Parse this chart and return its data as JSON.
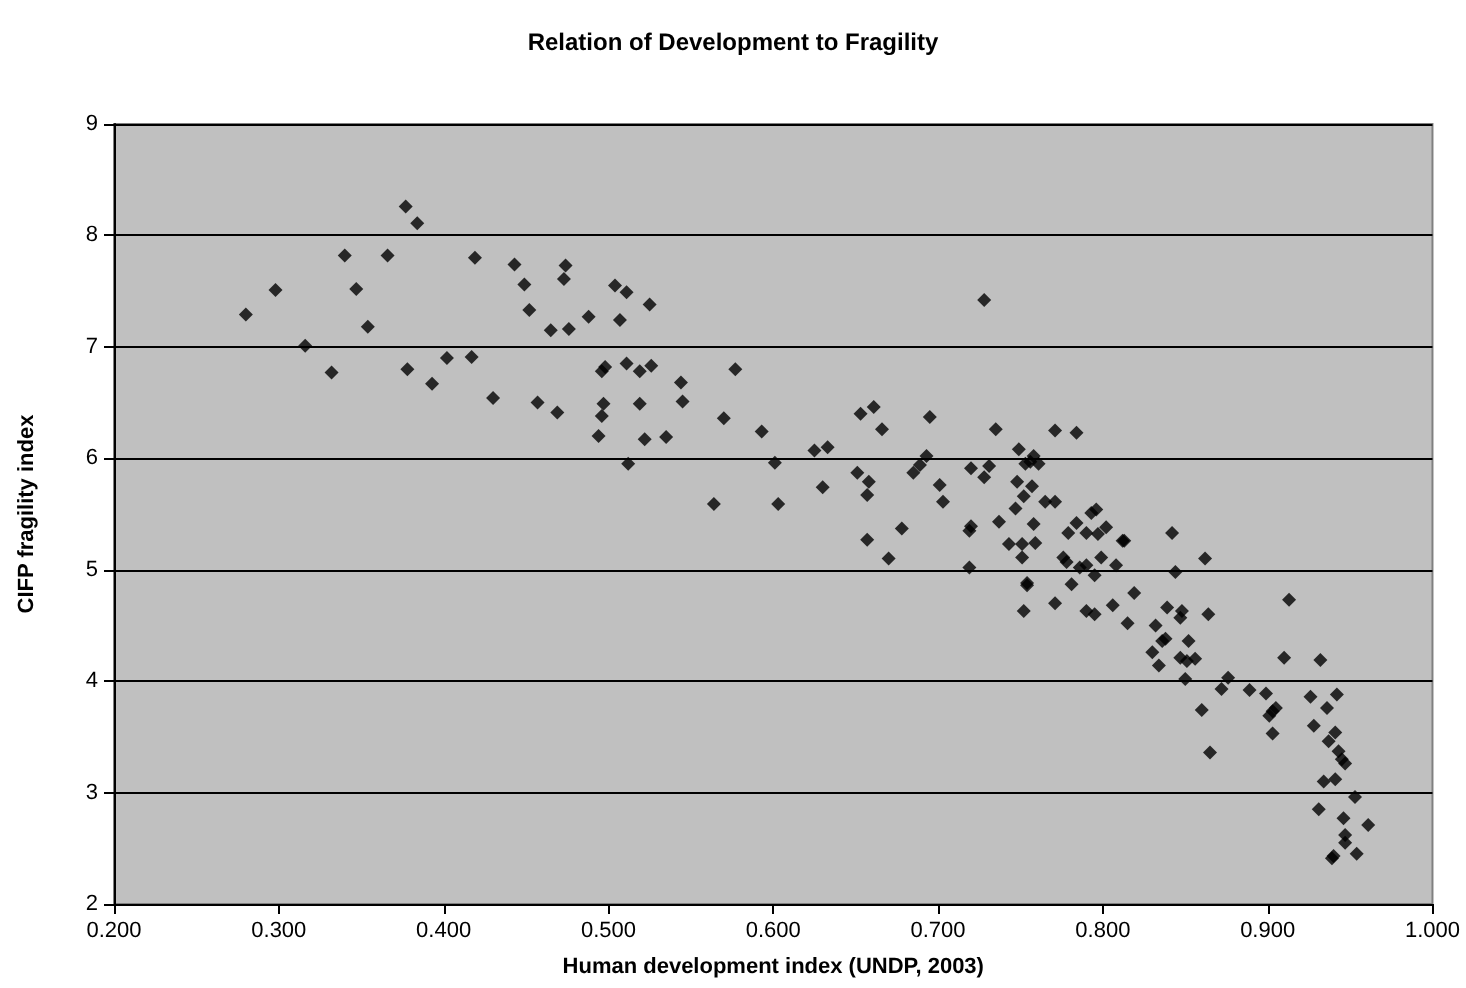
{
  "chart_data": {
    "type": "scatter",
    "title": "Relation of Development to Fragility",
    "xlabel": "Human development index (UNDP, 2003)",
    "ylabel": "CIFP fragility index",
    "xlim": [
      0.2,
      1.0
    ],
    "ylim": [
      2,
      9
    ],
    "xticks": [
      {
        "value": 0.2,
        "label": "0.200"
      },
      {
        "value": 0.3,
        "label": "0.300"
      },
      {
        "value": 0.4,
        "label": "0.400"
      },
      {
        "value": 0.5,
        "label": "0.500"
      },
      {
        "value": 0.6,
        "label": "0.600"
      },
      {
        "value": 0.7,
        "label": "0.700"
      },
      {
        "value": 0.8,
        "label": "0.800"
      },
      {
        "value": 0.9,
        "label": "0.900"
      },
      {
        "value": 1.0,
        "label": "1.000"
      }
    ],
    "yticks": [
      2,
      3,
      4,
      5,
      6,
      7,
      8,
      9
    ],
    "grid": "y",
    "marker": "diamond",
    "series": [
      {
        "color": "#000000",
        "x": [
          0.377,
          0.384,
          0.34,
          0.366,
          0.419,
          0.443,
          0.474,
          0.473,
          0.449,
          0.298,
          0.347,
          0.28,
          0.452,
          0.488,
          0.354,
          0.465,
          0.476,
          0.316,
          0.332,
          0.378,
          0.402,
          0.417,
          0.393,
          0.43,
          0.457,
          0.469,
          0.504,
          0.511,
          0.507,
          0.525,
          0.496,
          0.498,
          0.511,
          0.519,
          0.526,
          0.497,
          0.496,
          0.519,
          0.494,
          0.522,
          0.535,
          0.512,
          0.544,
          0.545,
          0.577,
          0.57,
          0.593,
          0.601,
          0.564,
          0.603,
          0.625,
          0.633,
          0.63,
          0.653,
          0.661,
          0.666,
          0.651,
          0.658,
          0.657,
          0.657,
          0.67,
          0.678,
          0.695,
          0.685,
          0.689,
          0.693,
          0.701,
          0.703,
          0.728,
          0.735,
          0.771,
          0.784,
          0.749,
          0.758,
          0.753,
          0.761,
          0.756,
          0.72,
          0.731,
          0.728,
          0.748,
          0.757,
          0.752,
          0.765,
          0.771,
          0.747,
          0.72,
          0.719,
          0.737,
          0.758,
          0.793,
          0.796,
          0.784,
          0.779,
          0.79,
          0.797,
          0.802,
          0.812,
          0.842,
          0.743,
          0.751,
          0.759,
          0.751,
          0.776,
          0.778,
          0.786,
          0.79,
          0.795,
          0.799,
          0.808,
          0.719,
          0.754,
          0.754,
          0.781,
          0.771,
          0.752,
          0.79,
          0.795,
          0.806,
          0.819,
          0.839,
          0.844,
          0.862,
          0.848,
          0.864,
          0.813,
          0.815,
          0.847,
          0.832,
          0.836,
          0.838,
          0.83,
          0.852,
          0.834,
          0.847,
          0.851,
          0.856,
          0.85,
          0.86,
          0.865,
          0.872,
          0.876,
          0.889,
          0.899,
          0.905,
          0.903,
          0.901,
          0.903,
          0.913,
          0.91,
          0.932,
          0.926,
          0.936,
          0.942,
          0.928,
          0.937,
          0.941,
          0.943,
          0.945,
          0.947,
          0.934,
          0.941,
          0.953,
          0.931,
          0.946,
          0.961,
          0.947,
          0.947,
          0.939,
          0.94,
          0.954
        ],
        "values": [
          8.26,
          8.11,
          7.82,
          7.82,
          7.8,
          7.74,
          7.73,
          7.61,
          7.56,
          7.51,
          7.52,
          7.29,
          7.33,
          7.27,
          7.18,
          7.15,
          7.16,
          7.01,
          6.77,
          6.8,
          6.9,
          6.91,
          6.67,
          6.54,
          6.5,
          6.41,
          7.55,
          7.49,
          7.24,
          7.38,
          6.78,
          6.82,
          6.85,
          6.78,
          6.83,
          6.49,
          6.38,
          6.49,
          6.2,
          6.17,
          6.19,
          5.95,
          6.68,
          6.51,
          6.8,
          6.36,
          6.24,
          5.96,
          5.59,
          5.59,
          6.07,
          6.1,
          5.74,
          6.4,
          6.46,
          6.26,
          5.87,
          5.79,
          5.67,
          5.27,
          5.1,
          5.37,
          6.37,
          5.87,
          5.94,
          6.02,
          5.76,
          5.61,
          7.42,
          6.26,
          6.25,
          6.23,
          6.08,
          6.02,
          5.95,
          5.95,
          5.97,
          5.91,
          5.93,
          5.83,
          5.79,
          5.75,
          5.66,
          5.61,
          5.61,
          5.55,
          5.39,
          5.35,
          5.43,
          5.41,
          5.51,
          5.54,
          5.42,
          5.33,
          5.33,
          5.32,
          5.38,
          5.26,
          5.33,
          5.23,
          5.23,
          5.24,
          5.11,
          5.11,
          5.07,
          5.02,
          5.04,
          4.95,
          5.11,
          5.04,
          5.02,
          4.88,
          4.86,
          4.87,
          4.7,
          4.63,
          4.63,
          4.6,
          4.68,
          4.79,
          4.66,
          4.98,
          5.1,
          4.63,
          4.6,
          5.26,
          4.52,
          4.57,
          4.5,
          4.36,
          4.38,
          4.26,
          4.36,
          4.14,
          4.21,
          4.18,
          4.2,
          4.02,
          3.74,
          3.36,
          3.93,
          4.03,
          3.92,
          3.89,
          3.76,
          3.73,
          3.69,
          3.53,
          4.73,
          4.21,
          4.19,
          3.86,
          3.76,
          3.88,
          3.6,
          3.46,
          3.54,
          3.37,
          3.3,
          3.26,
          3.1,
          3.12,
          2.96,
          2.85,
          2.77,
          2.71,
          2.62,
          2.55,
          2.41,
          2.43,
          2.45
        ]
      }
    ]
  }
}
